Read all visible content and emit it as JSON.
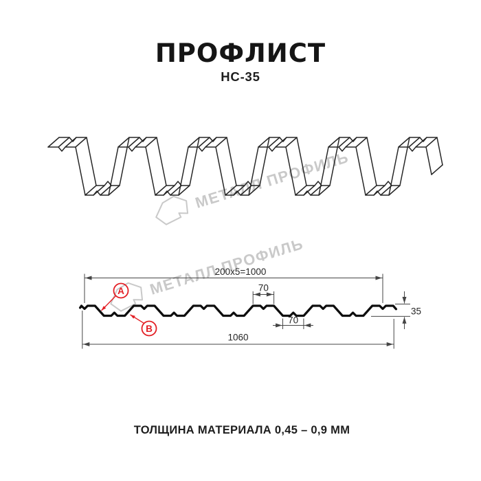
{
  "header": {
    "title": "ПРОФЛИСТ",
    "subtitle": "НС-35"
  },
  "watermark": {
    "brand": "МЕТАЛЛ ПРОФИЛЬ"
  },
  "diagram": {
    "dimensions": {
      "top_pitch": "200x5=1000",
      "rib_top_width": "70",
      "rib_bottom_width": "70",
      "overall_width": "1060",
      "profile_height": "35"
    },
    "markers": {
      "a": "A",
      "b": "B"
    }
  },
  "footer": {
    "thickness_note": "ТОЛЩИНА МАТЕРИАЛА 0,45 – 0,9 ММ"
  },
  "colors": {
    "background": "#ffffff",
    "line": "#0e0e0e",
    "dimension": "#454545",
    "accent_red": "#e31e24",
    "watermark": "#c9c9c9"
  }
}
